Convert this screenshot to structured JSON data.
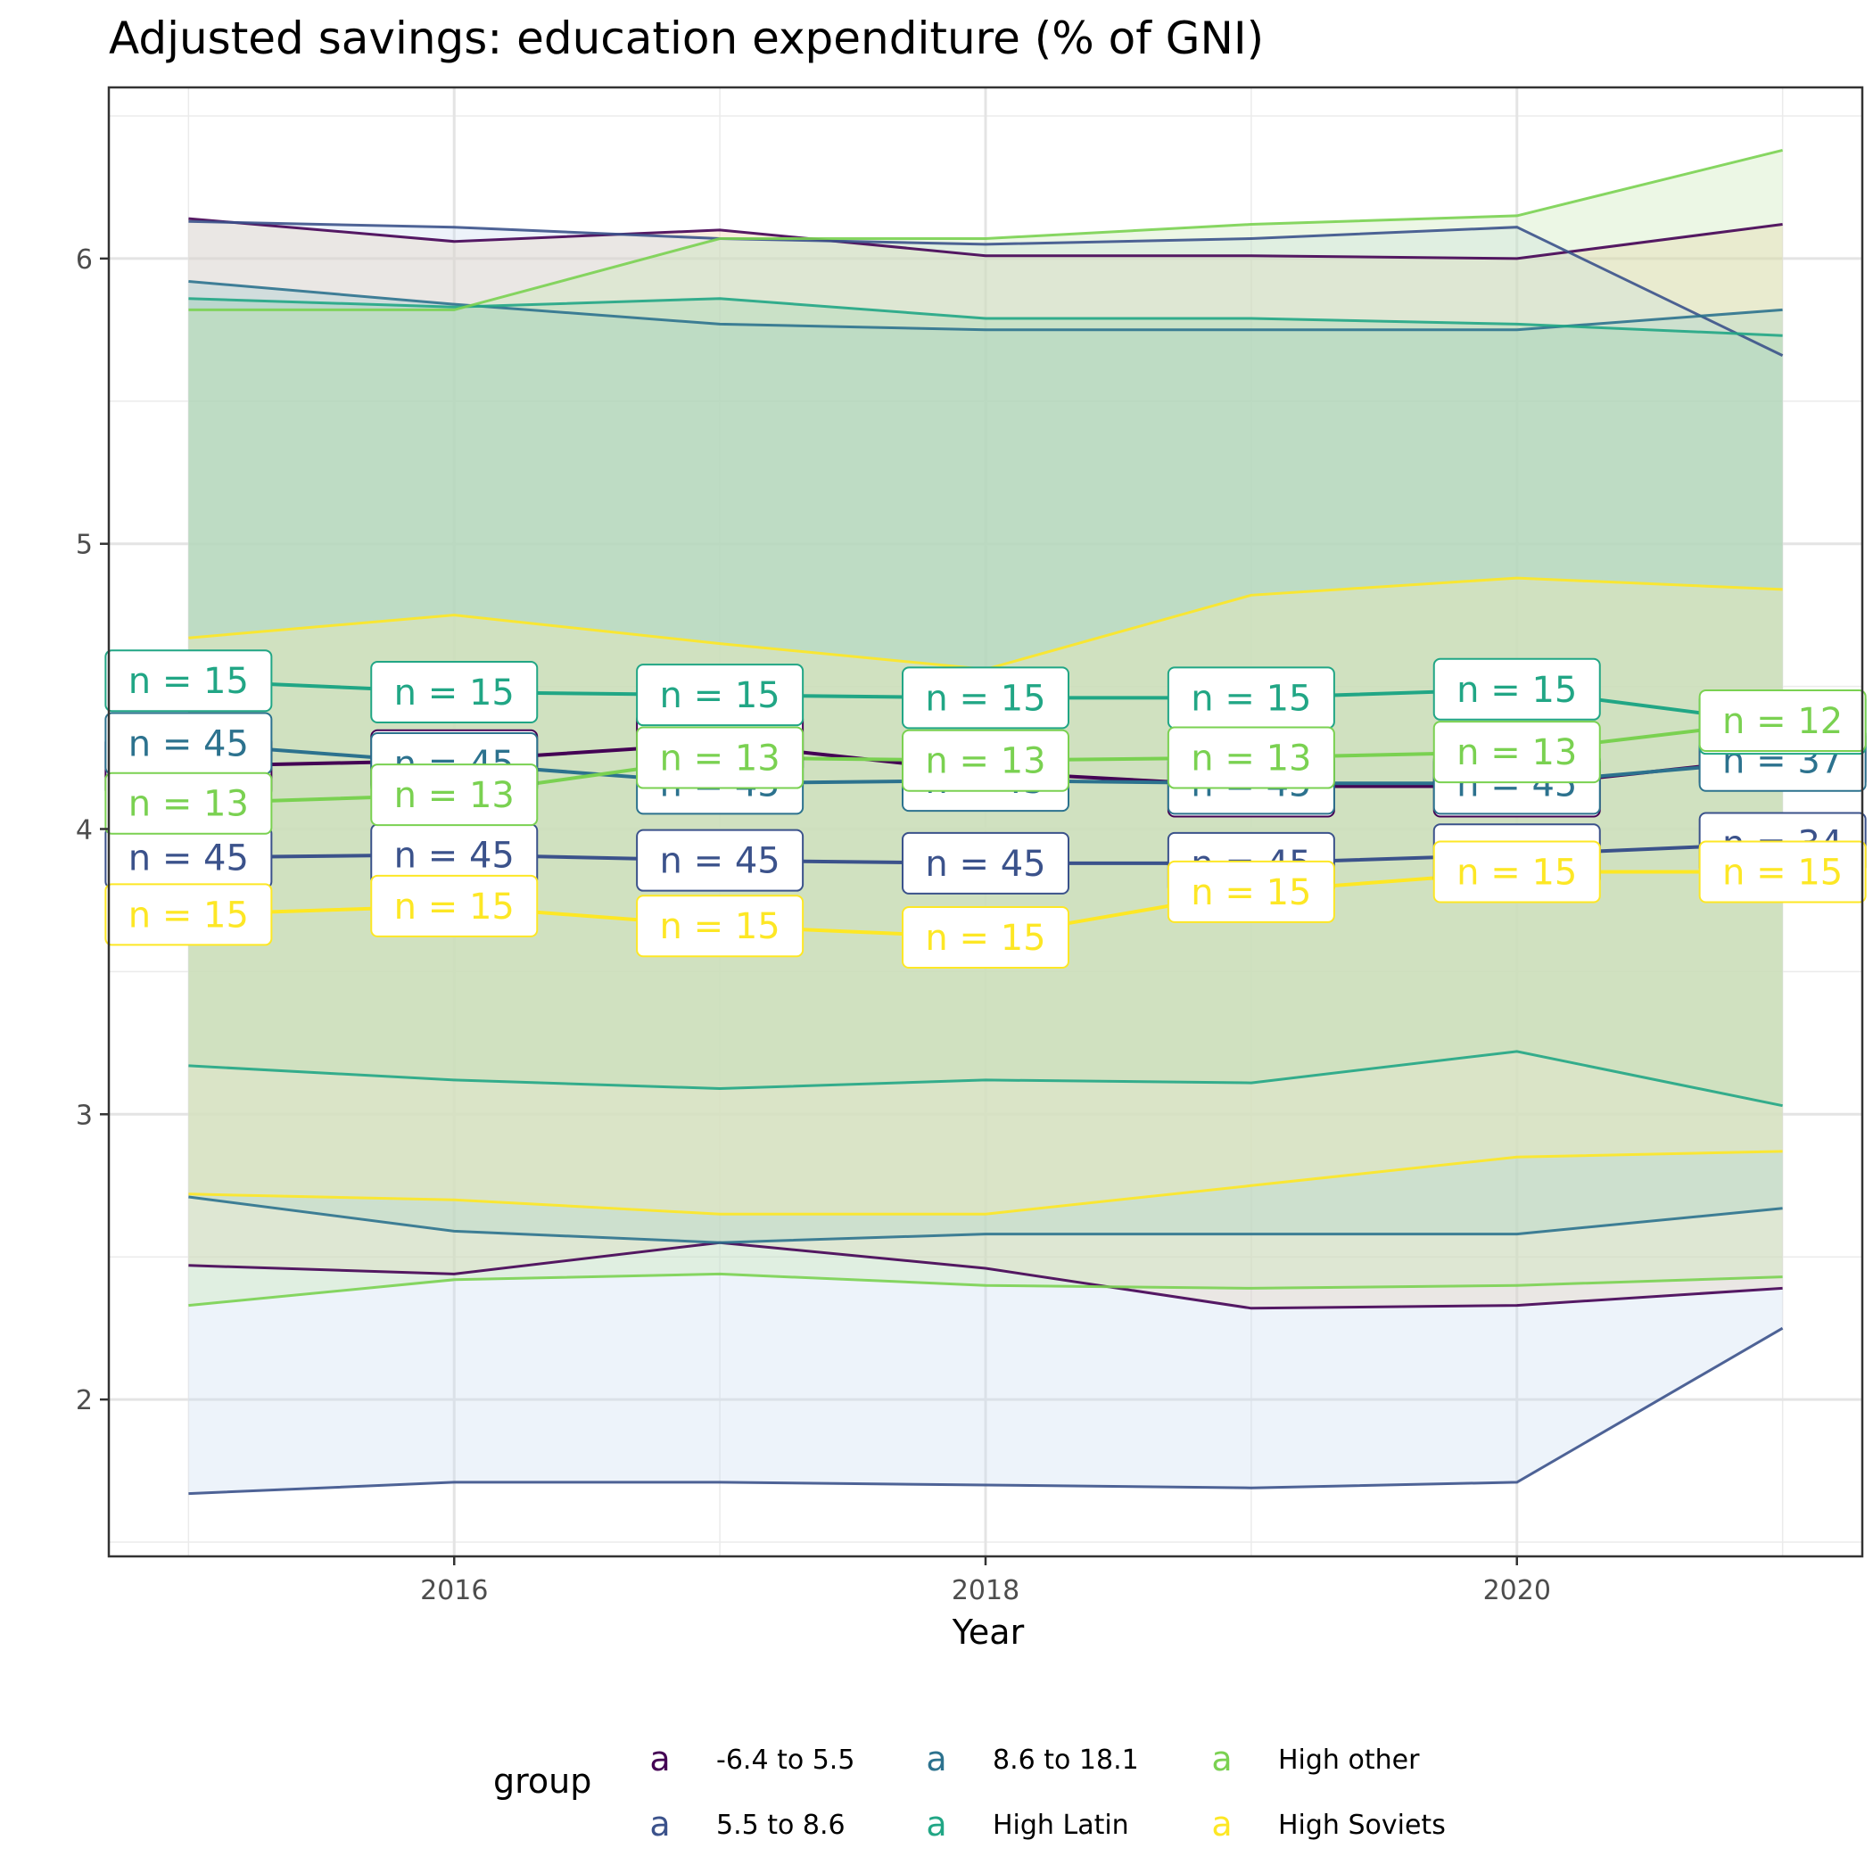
{
  "chart_data": {
    "type": "line",
    "title": "Adjusted savings: education expenditure (% of GNI)",
    "xlabel": "Year",
    "ylabel": "",
    "xlim": [
      2014.7,
      2021.3
    ],
    "ylim": [
      1.45,
      6.6
    ],
    "x": [
      2015,
      2016,
      2017,
      2018,
      2019,
      2020,
      2021
    ],
    "x_ticks": [
      2016,
      2018,
      2020
    ],
    "x_tick_labels": [
      "2016",
      "2018",
      "2020"
    ],
    "y_ticks": [
      2,
      3,
      4,
      5,
      6
    ],
    "y_tick_labels": [
      "2",
      "3",
      "4",
      "5",
      "6"
    ],
    "grid": true,
    "legend": {
      "title": "group",
      "position": "bottom",
      "key_glyph": "a",
      "entries": [
        "-6.4 to 5.5",
        "5.5 to 8.6",
        "8.6 to 18.1",
        "High Latin",
        "High other",
        "High Soviets"
      ]
    },
    "series": [
      {
        "name": "-6.4 to 5.5",
        "color": "#440154",
        "band_fill": "#f3c79a",
        "mean": [
          4.22,
          4.24,
          4.3,
          4.2,
          4.15,
          4.15,
          4.25
        ],
        "upper": [
          6.14,
          6.06,
          6.1,
          6.01,
          6.01,
          6.0,
          6.12
        ],
        "lower": [
          2.47,
          2.44,
          2.55,
          2.46,
          2.32,
          2.33,
          2.39
        ],
        "n_labels": [
          "n = 45",
          "n = 45",
          "n = 45",
          "n = 45",
          "n = 45",
          "n = 45",
          "n = 37"
        ]
      },
      {
        "name": "5.5 to 8.6",
        "color": "#3b528b",
        "band_fill": "#c9dcf0",
        "mean": [
          3.9,
          3.91,
          3.89,
          3.88,
          3.88,
          3.91,
          3.95
        ],
        "upper": [
          6.13,
          6.11,
          6.07,
          6.05,
          6.07,
          6.11,
          5.66
        ],
        "lower": [
          1.67,
          1.71,
          1.71,
          1.7,
          1.69,
          1.71,
          2.25
        ],
        "n_labels": [
          "n = 45",
          "n = 45",
          "n = 45",
          "n = 45",
          "n = 45",
          "n = 45",
          "n = 34"
        ]
      },
      {
        "name": "8.6 to 18.1",
        "color": "#2c728e",
        "band_fill": "#9fc7cf",
        "mean": [
          4.3,
          4.23,
          4.16,
          4.17,
          4.16,
          4.16,
          4.24
        ],
        "upper": [
          5.92,
          5.84,
          5.77,
          5.75,
          5.75,
          5.75,
          5.82
        ],
        "lower": [
          2.71,
          2.59,
          2.55,
          2.58,
          2.58,
          2.58,
          2.67
        ],
        "n_labels": [
          "n = 45",
          "n = 45",
          "n = 45",
          "n = 45",
          "n = 45",
          "n = 45",
          "n = 37"
        ]
      },
      {
        "name": "High Latin",
        "color": "#21a685",
        "band_fill": "#8fcab0",
        "mean": [
          4.52,
          4.48,
          4.47,
          4.46,
          4.46,
          4.49,
          4.37
        ],
        "upper": [
          5.86,
          5.83,
          5.86,
          5.79,
          5.79,
          5.77,
          5.73
        ],
        "lower": [
          3.17,
          3.12,
          3.09,
          3.12,
          3.11,
          3.22,
          3.03
        ],
        "n_labels": [
          "n = 15",
          "n = 15",
          "n = 15",
          "n = 15",
          "n = 15",
          "n = 15",
          "n = 12"
        ]
      },
      {
        "name": "High other",
        "color": "#7ad151",
        "band_fill": "#c6e8b0",
        "mean": [
          4.09,
          4.12,
          4.25,
          4.24,
          4.25,
          4.27,
          4.38
        ],
        "upper": [
          5.82,
          5.82,
          6.07,
          6.07,
          6.12,
          6.15,
          6.38
        ],
        "lower": [
          2.33,
          2.42,
          2.44,
          2.4,
          2.39,
          2.4,
          2.43
        ],
        "n_labels": [
          "n = 13",
          "n = 13",
          "n = 13",
          "n = 13",
          "n = 13",
          "n = 13",
          "n = 12"
        ]
      },
      {
        "name": "High Soviets",
        "color": "#fde725",
        "band_fill": "#f6edb8",
        "mean": [
          3.7,
          3.73,
          3.66,
          3.62,
          3.78,
          3.85,
          3.85
        ],
        "upper": [
          4.67,
          4.75,
          4.65,
          4.56,
          4.82,
          4.88,
          4.84
        ],
        "lower": [
          2.72,
          2.7,
          2.65,
          2.65,
          2.75,
          2.85,
          2.87
        ],
        "n_labels": [
          "n = 15",
          "n = 15",
          "n = 15",
          "n = 15",
          "n = 15",
          "n = 15",
          "n = 15"
        ]
      }
    ]
  }
}
